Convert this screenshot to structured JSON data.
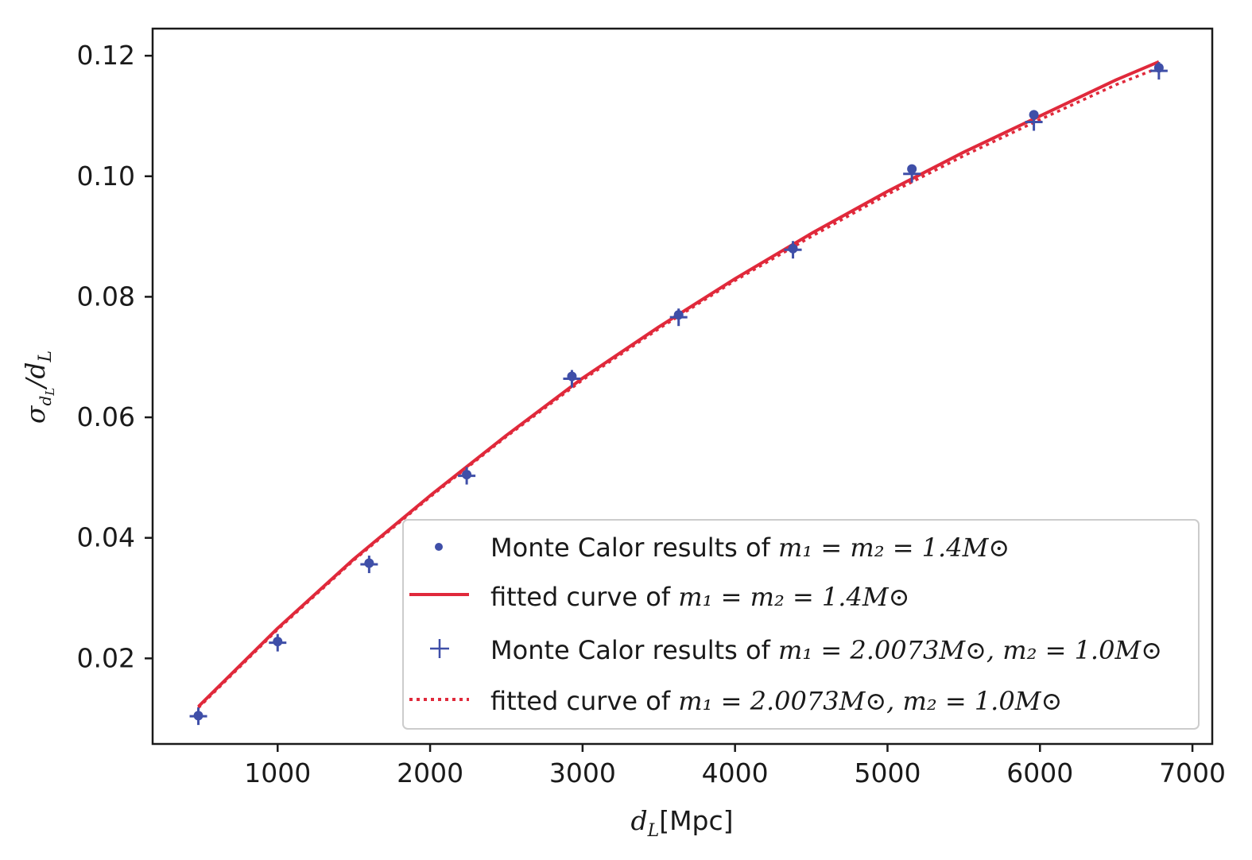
{
  "chart_data": {
    "type": "scatter",
    "xlabel": "d_L[Mpc]",
    "ylabel": "σ_{d_L}/d_L",
    "xlim": [
      180,
      7130
    ],
    "ylim": [
      0.0058,
      0.1245
    ],
    "xticks": [
      1000,
      2000,
      3000,
      4000,
      5000,
      6000,
      7000
    ],
    "yticks": [
      0.02,
      0.04,
      0.06,
      0.08,
      0.1,
      0.12
    ],
    "xtick_labels": [
      "1000",
      "2000",
      "3000",
      "4000",
      "5000",
      "6000",
      "7000"
    ],
    "ytick_labels": [
      "0.02",
      "0.04",
      "0.06",
      "0.08",
      "0.10",
      "0.12"
    ],
    "grid": false,
    "legend_position": "lower-right",
    "series": [
      {
        "name": "Monte Calor results of m1 = m2 = 1.4M⊙",
        "kind": "markers-dot",
        "color": "#3f4fa8",
        "x": [
          480,
          1000,
          1600,
          2240,
          2930,
          3630,
          4380,
          5160,
          5960,
          6780
        ],
        "y": [
          0.0105,
          0.0228,
          0.0358,
          0.0505,
          0.0668,
          0.077,
          0.088,
          0.1012,
          0.1102,
          0.118
        ]
      },
      {
        "name": "fitted curve of m1 = m2 = 1.4M⊙",
        "kind": "line-solid",
        "color": "#e0293b",
        "x": [
          480,
          1000,
          1500,
          2000,
          2500,
          3000,
          3500,
          4000,
          4500,
          5000,
          5500,
          6000,
          6500,
          6780
        ],
        "y": [
          0.012,
          0.025,
          0.0365,
          0.047,
          0.057,
          0.0665,
          0.075,
          0.083,
          0.0905,
          0.0975,
          0.104,
          0.11,
          0.116,
          0.119
        ]
      },
      {
        "name": "Monte Calor results of m1 = 2.0073M⊙, m2 = 1.0M⊙",
        "kind": "markers-plus",
        "color": "#3f4fa8",
        "x": [
          480,
          1000,
          1600,
          2240,
          2930,
          3630,
          4380,
          5160,
          5960,
          6780
        ],
        "y": [
          0.0104,
          0.0226,
          0.0356,
          0.0503,
          0.0664,
          0.0766,
          0.0878,
          0.1004,
          0.109,
          0.1175
        ]
      },
      {
        "name": "fitted curve of m1 = 2.0073M⊙, m2 = 1.0M⊙",
        "kind": "line-dotted",
        "color": "#e0293b",
        "x": [
          480,
          1000,
          1500,
          2000,
          2500,
          3000,
          3500,
          4000,
          4500,
          5000,
          5500,
          6000,
          6500,
          6780
        ],
        "y": [
          0.0118,
          0.0248,
          0.0363,
          0.0468,
          0.0568,
          0.0662,
          0.0747,
          0.0827,
          0.09,
          0.097,
          0.1034,
          0.1094,
          0.1152,
          0.118
        ]
      }
    ]
  },
  "legend": {
    "entries": [
      {
        "prefix": "Monte Calor results of ",
        "math": "m₁ = m₂ = 1.4M⊙"
      },
      {
        "prefix": "fitted curve of ",
        "math": "m₁ = m₂ = 1.4M⊙"
      },
      {
        "prefix": "Monte Calor results of ",
        "math": "m₁ = 2.0073M⊙, m₂ = 1.0M⊙"
      },
      {
        "prefix": "fitted curve of ",
        "math": "m₁ = 2.0073M⊙, m₂ = 1.0M⊙"
      }
    ]
  },
  "axes": {
    "xlabel_main": "d",
    "xlabel_sub": "L",
    "xlabel_unit": "[Mpc]",
    "ylabel_sigma": "σ",
    "ylabel_sub1": "d",
    "ylabel_sub2": "L",
    "ylabel_slash": "/d",
    "ylabel_sub3": "L"
  }
}
